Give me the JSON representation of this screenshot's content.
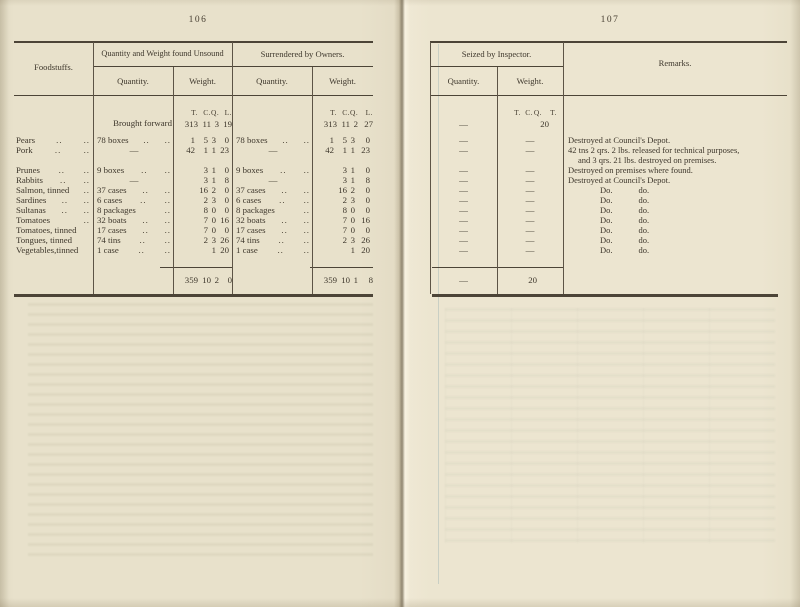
{
  "left_page": {
    "page_number": "106",
    "header": {
      "foodstuffs": "Foodstuffs.",
      "group_unsound": "Quantity and Weight found Unsound",
      "group_surrendered": "Surrendered by Owners.",
      "quantity": "Quantity.",
      "weight": "Weight.",
      "units": [
        "T.",
        "C.",
        "Q.",
        "L."
      ]
    },
    "brought_forward_label": "Brought forward",
    "brought_forward_unsound": [
      "313",
      "11",
      "3",
      "19"
    ],
    "brought_forward_surrendered": [
      "313",
      "11",
      "2",
      "27"
    ],
    "total_unsound": [
      "359",
      "10",
      "2",
      "0"
    ],
    "total_surrendered": [
      "359",
      "10",
      "1",
      "8"
    ]
  },
  "right_page": {
    "page_number": "107",
    "header": {
      "group_seized": "Seized by Inspector.",
      "quantity": "Quantity.",
      "weight": "Weight.",
      "remarks": "Remarks.",
      "units": [
        "T.",
        "C.",
        "Q.",
        "T."
      ]
    },
    "brought_forward_seized": {
      "quantity": "—",
      "weight": "20"
    },
    "total_seized": {
      "quantity": "—",
      "weight": "20"
    }
  },
  "rows": [
    {
      "foodstuff": "Pears",
      "f_dots1": "..",
      "f_dots2": "..",
      "unsound_qty": "78 boxes",
      "u_dots1": "..",
      "u_dots2": "..",
      "unsound_wt": [
        "1",
        "5",
        "3",
        "0"
      ],
      "surr_qty": "78 boxes",
      "s_dots1": "..",
      "s_dots2": "..",
      "surr_wt": [
        "1",
        "5",
        "3",
        "0"
      ],
      "seized_qty": "—",
      "seized_wt": "—",
      "remark_lines": [
        "Destroyed at Council's Depot."
      ]
    },
    {
      "foodstuff": "Pork",
      "f_dots1": "..",
      "f_dots2": "..",
      "unsound_qty": "—",
      "unsound_wt": [
        "42",
        "1",
        "1",
        "23"
      ],
      "surr_qty": "—",
      "surr_wt": [
        "42",
        "1",
        "1",
        "23"
      ],
      "seized_qty": "—",
      "seized_wt": "—",
      "tall": true,
      "remark_lines": [
        "42 tns 2 qrs. 2 lbs. released for technical purposes,",
        "and 3 qrs. 21 lbs. destroyed on premises."
      ]
    },
    {
      "foodstuff": "Prunes",
      "f_dots1": "..",
      "f_dots2": "..",
      "unsound_qty": "9 boxes",
      "u_dots1": "..",
      "u_dots2": "..",
      "unsound_wt": [
        "",
        "3",
        "1",
        "0"
      ],
      "surr_qty": "9 boxes",
      "s_dots1": "..",
      "s_dots2": "..",
      "surr_wt": [
        "",
        "3",
        "1",
        "0"
      ],
      "seized_qty": "—",
      "seized_wt": "—",
      "remark_lines": [
        "Destroyed on premises where found."
      ]
    },
    {
      "foodstuff": "Rabbits",
      "f_dots1": "..",
      "f_dots2": "..",
      "unsound_qty": "—",
      "unsound_wt": [
        "",
        "3",
        "1",
        "8"
      ],
      "surr_qty": "—",
      "surr_wt": [
        "",
        "3",
        "1",
        "8"
      ],
      "seized_qty": "—",
      "seized_wt": "—",
      "remark_lines": [
        "Destroyed at Council's Depot."
      ]
    },
    {
      "foodstuff": "Salmon, tinned",
      "f_dots1": "",
      "f_dots2": "..",
      "unsound_qty": "37 cases",
      "u_dots1": "..",
      "u_dots2": "..",
      "unsound_wt": [
        "",
        "16",
        "2",
        "0"
      ],
      "surr_qty": "37 cases",
      "s_dots1": "..",
      "s_dots2": "..",
      "surr_wt": [
        "",
        "16",
        "2",
        "0"
      ],
      "seized_qty": "—",
      "seized_wt": "—",
      "remark_do": [
        "Do.",
        "do."
      ]
    },
    {
      "foodstuff": "Sardines",
      "f_dots1": "..",
      "f_dots2": "..",
      "unsound_qty": "6 cases",
      "u_dots1": "..",
      "u_dots2": "..",
      "unsound_wt": [
        "",
        "2",
        "3",
        "0"
      ],
      "surr_qty": "6 cases",
      "s_dots1": "..",
      "s_dots2": "..",
      "surr_wt": [
        "",
        "2",
        "3",
        "0"
      ],
      "seized_qty": "—",
      "seized_wt": "—",
      "remark_do": [
        "Do.",
        "do."
      ]
    },
    {
      "foodstuff": "Sultanas",
      "f_dots1": "..",
      "f_dots2": "..",
      "unsound_qty": "8 packages",
      "u_dots1": "",
      "u_dots2": "..",
      "unsound_wt": [
        "",
        "8",
        "0",
        "0"
      ],
      "surr_qty": "8 packages",
      "s_dots1": "",
      "s_dots2": "..",
      "surr_wt": [
        "",
        "8",
        "0",
        "0"
      ],
      "seized_qty": "—",
      "seized_wt": "—",
      "remark_do": [
        "Do.",
        "do."
      ]
    },
    {
      "foodstuff": "Tomatoes",
      "f_dots1": "",
      "f_dots2": "..",
      "unsound_qty": "32 boats",
      "u_dots1": "..",
      "u_dots2": "..",
      "unsound_wt": [
        "",
        "7",
        "0",
        "16"
      ],
      "surr_qty": "32 boats",
      "s_dots1": "..",
      "s_dots2": "..",
      "surr_wt": [
        "",
        "7",
        "0",
        "16"
      ],
      "seized_qty": "—",
      "seized_wt": "—",
      "remark_do": [
        "Do.",
        "do."
      ]
    },
    {
      "foodstuff": "Tomatoes, tinned",
      "f_dots1": "",
      "f_dots2": "",
      "unsound_qty": "17 cases",
      "u_dots1": "..",
      "u_dots2": "..",
      "unsound_wt": [
        "",
        "7",
        "0",
        "0"
      ],
      "surr_qty": "17 cases",
      "s_dots1": "..",
      "s_dots2": "..",
      "surr_wt": [
        "",
        "7",
        "0",
        "0"
      ],
      "seized_qty": "—",
      "seized_wt": "—",
      "remark_do": [
        "Do.",
        "do."
      ]
    },
    {
      "foodstuff": "Tongues, tinned",
      "f_dots1": "",
      "f_dots2": "",
      "unsound_qty": "74 tins",
      "u_dots1": "..",
      "u_dots2": "..",
      "unsound_wt": [
        "",
        "2",
        "3",
        "26"
      ],
      "surr_qty": "74 tins",
      "s_dots1": "..",
      "s_dots2": "..",
      "surr_wt": [
        "",
        "2",
        "3",
        "26"
      ],
      "seized_qty": "—",
      "seized_wt": "—",
      "remark_do": [
        "Do.",
        "do."
      ]
    },
    {
      "foodstuff": "Vegetables,tinned",
      "f_dots1": "",
      "f_dots2": "",
      "unsound_qty": "1 case",
      "u_dots1": "..",
      "u_dots2": "..",
      "unsound_wt": [
        "",
        "",
        "1",
        "20"
      ],
      "surr_qty": "1 case",
      "s_dots1": "..",
      "s_dots2": "..",
      "surr_wt": [
        "",
        "",
        "1",
        "20"
      ],
      "seized_qty": "—",
      "seized_wt": "—",
      "remark_do": [
        "Do.",
        "do."
      ]
    }
  ]
}
